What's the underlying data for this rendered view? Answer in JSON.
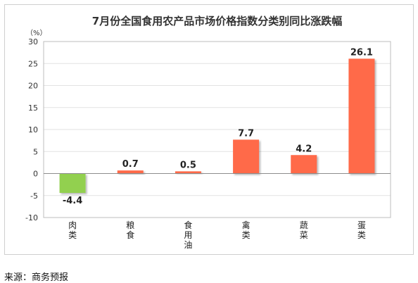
{
  "chart_data": {
    "type": "bar",
    "title": "7月份全国食用农产品市场价格指数分类别同比涨跌幅",
    "unit_label": "（%）",
    "categories": [
      "肉类",
      "粮食",
      "食用油",
      "禽类",
      "蔬菜",
      "蛋类"
    ],
    "category_label_lines": [
      [
        "肉",
        "类"
      ],
      [
        "粮",
        "食"
      ],
      [
        "食",
        "用",
        "油"
      ],
      [
        "禽",
        "类"
      ],
      [
        "蔬",
        "菜"
      ],
      [
        "蛋",
        "类"
      ]
    ],
    "values": [
      -4.4,
      0.7,
      0.5,
      7.7,
      4.2,
      26.1
    ],
    "value_labels": [
      "-4.4",
      "0.7",
      "0.5",
      "7.7",
      "4.2",
      "26.1"
    ],
    "ylim": [
      -10,
      30
    ],
    "yticks": [
      -10,
      -5,
      0,
      5,
      10,
      15,
      20,
      25,
      30
    ],
    "ytick_labels": [
      "-10",
      "-5",
      "0",
      "5",
      "10",
      "15",
      "20",
      "25",
      "30"
    ],
    "grid": true,
    "colors": {
      "positive": "#ff6b4a",
      "negative": "#92d050",
      "grid": "#e2e2e2",
      "axis": "#8c8c8c"
    }
  },
  "footer": {
    "source": "来源：商务预报"
  }
}
